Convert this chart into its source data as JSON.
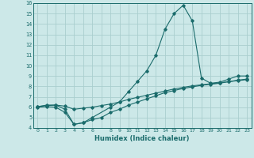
{
  "title": "",
  "xlabel": "Humidex (Indice chaleur)",
  "ylabel": "",
  "bg_color": "#cce8e8",
  "line_color": "#1a6b6b",
  "grid_color": "#aacece",
  "xlim": [
    -0.5,
    23.5
  ],
  "ylim": [
    4,
    16
  ],
  "xticks": [
    0,
    1,
    2,
    3,
    4,
    5,
    6,
    7,
    8,
    9,
    10,
    11,
    12,
    13,
    14,
    15,
    16,
    17,
    18,
    19,
    20,
    21,
    22,
    23
  ],
  "yticks": [
    4,
    5,
    6,
    7,
    8,
    9,
    10,
    11,
    12,
    13,
    14,
    15,
    16
  ],
  "line1_x": [
    0,
    1,
    2,
    3,
    4,
    5,
    6,
    8,
    9,
    10,
    11,
    12,
    13,
    14,
    15,
    16,
    17,
    18,
    19,
    20,
    21,
    22,
    23
  ],
  "line1_y": [
    6.05,
    6.2,
    6.2,
    5.8,
    4.35,
    4.5,
    5.0,
    6.0,
    6.5,
    7.5,
    8.5,
    9.5,
    11.0,
    13.5,
    15.0,
    15.8,
    14.3,
    8.8,
    8.3,
    8.4,
    8.7,
    9.0,
    9.0
  ],
  "line2_x": [
    0,
    1,
    2,
    3,
    4,
    5,
    6,
    7,
    8,
    9,
    10,
    11,
    12,
    13,
    14,
    15,
    16,
    17,
    18,
    19,
    20,
    21,
    22,
    23
  ],
  "line2_y": [
    6.05,
    6.15,
    6.2,
    6.1,
    5.8,
    5.9,
    6.0,
    6.15,
    6.3,
    6.5,
    6.75,
    6.95,
    7.15,
    7.35,
    7.55,
    7.75,
    7.9,
    8.05,
    8.15,
    8.25,
    8.35,
    8.45,
    8.6,
    8.7
  ],
  "line3_x": [
    0,
    1,
    2,
    3,
    4,
    5,
    6,
    7,
    8,
    9,
    10,
    11,
    12,
    13,
    14,
    15,
    16,
    17,
    18,
    19,
    20,
    21,
    22,
    23
  ],
  "line3_y": [
    6.0,
    6.05,
    6.0,
    5.5,
    4.35,
    4.5,
    4.8,
    5.0,
    5.5,
    5.8,
    6.2,
    6.5,
    6.8,
    7.1,
    7.4,
    7.6,
    7.8,
    7.95,
    8.1,
    8.2,
    8.3,
    8.45,
    8.55,
    8.65
  ]
}
